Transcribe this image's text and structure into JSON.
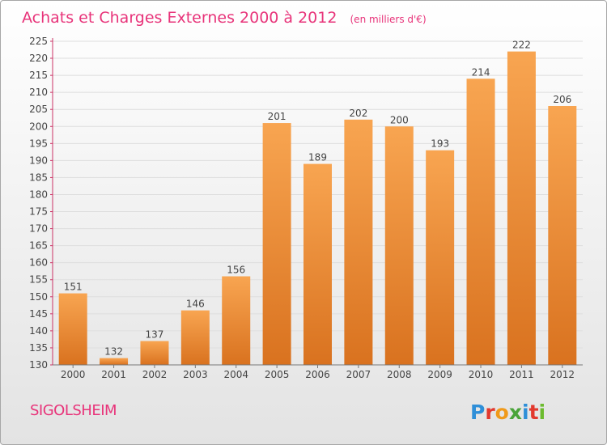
{
  "chart_data": {
    "type": "bar",
    "title": "Achats et Charges Externes 2000 à 2012",
    "subtitle": "(en milliers d'€)",
    "xlabel": "",
    "ylabel": "",
    "categories": [
      "2000",
      "2001",
      "2002",
      "2003",
      "2004",
      "2005",
      "2006",
      "2007",
      "2008",
      "2009",
      "2010",
      "2011",
      "2012"
    ],
    "values": [
      151,
      132,
      137,
      146,
      156,
      201,
      189,
      202,
      200,
      193,
      214,
      222,
      206
    ],
    "ylim": [
      130,
      225
    ],
    "yticks": [
      130,
      135,
      140,
      145,
      150,
      155,
      160,
      165,
      170,
      175,
      180,
      185,
      190,
      195,
      200,
      205,
      210,
      215,
      220,
      225
    ],
    "grid": true,
    "legend": "none",
    "bar_color_top": "#f8a551",
    "bar_color_bottom": "#d9721f",
    "axis_color": "#cc3366"
  },
  "footer": {
    "town": "SIGOLSHEIM",
    "logo": "Proxiti"
  },
  "colors": {
    "title": "#e8347a",
    "logo_letters": [
      "#2f8fd8",
      "#e2392e",
      "#f09a1a",
      "#4aa43a",
      "#2f8fd8",
      "#e2392e",
      "#6cbb2f"
    ]
  }
}
